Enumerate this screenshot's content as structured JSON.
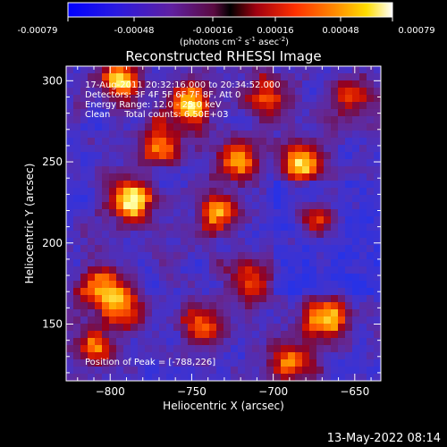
{
  "colorbar": {
    "tick_labels": [
      "-0.00079",
      "-0.00048",
      "-0.00016",
      "0.00016",
      "0.00048",
      "0.00079"
    ],
    "unit_parts": [
      "(photons cm",
      "-2",
      " s",
      "-1",
      " asec",
      "-2",
      ")"
    ]
  },
  "title": "Reconstructed RHESSI Image",
  "info": {
    "time": "17-Aug-2011 20:32:16.000 to 20:34:52.000",
    "detectors": "Detectors: 3F 4F 5F 6F 7F 8F, Att 0",
    "energy": "Energy Range: 12.0 - 25.0 keV",
    "clean": "Clean     Total counts: 6.50E+03"
  },
  "peak": "Position of Peak = [-788,226]",
  "footer_timestamp": "13-May-2022 08:14",
  "chart_data": {
    "type": "heatmap",
    "title": "Reconstructed RHESSI Image",
    "xlabel": "Heliocentric X (arcsec)",
    "ylabel": "Heliocentric Y (arcsec)",
    "xlim": [
      -827,
      -634
    ],
    "ylim": [
      115,
      309
    ],
    "xticks": [
      -800,
      -750,
      -700,
      -650
    ],
    "xtick_labels": [
      "−800",
      "−750",
      "−700",
      "−650"
    ],
    "yticks": [
      150,
      200,
      250,
      300
    ],
    "ytick_labels": [
      "150",
      "200",
      "250",
      "300"
    ],
    "colorbar_range": [
      -0.00079,
      0.00079
    ],
    "peak_position": [
      -788,
      226
    ],
    "colors": [
      "#0000ff",
      "#6020a0",
      "#8a0044",
      "#d01000",
      "#ff5000",
      "#ffaa00",
      "#ffff66"
    ],
    "bright_sources": [
      {
        "x": -788,
        "y": 226,
        "level": 1.0
      },
      {
        "x": -792,
        "y": 300,
        "level": 0.8
      },
      {
        "x": -750,
        "y": 285,
        "level": 0.85
      },
      {
        "x": -770,
        "y": 262,
        "level": 0.7
      },
      {
        "x": -722,
        "y": 252,
        "level": 0.75
      },
      {
        "x": -705,
        "y": 290,
        "level": 0.6
      },
      {
        "x": -683,
        "y": 248,
        "level": 0.85
      },
      {
        "x": -672,
        "y": 215,
        "level": 0.6
      },
      {
        "x": -735,
        "y": 218,
        "level": 0.65
      },
      {
        "x": -808,
        "y": 175,
        "level": 0.6
      },
      {
        "x": -795,
        "y": 162,
        "level": 0.75
      },
      {
        "x": -745,
        "y": 148,
        "level": 0.55
      },
      {
        "x": -715,
        "y": 178,
        "level": 0.6
      },
      {
        "x": -668,
        "y": 153,
        "level": 0.95
      },
      {
        "x": -690,
        "y": 125,
        "level": 0.6
      },
      {
        "x": -810,
        "y": 135,
        "level": 0.55
      },
      {
        "x": -652,
        "y": 290,
        "level": 0.5
      }
    ]
  }
}
